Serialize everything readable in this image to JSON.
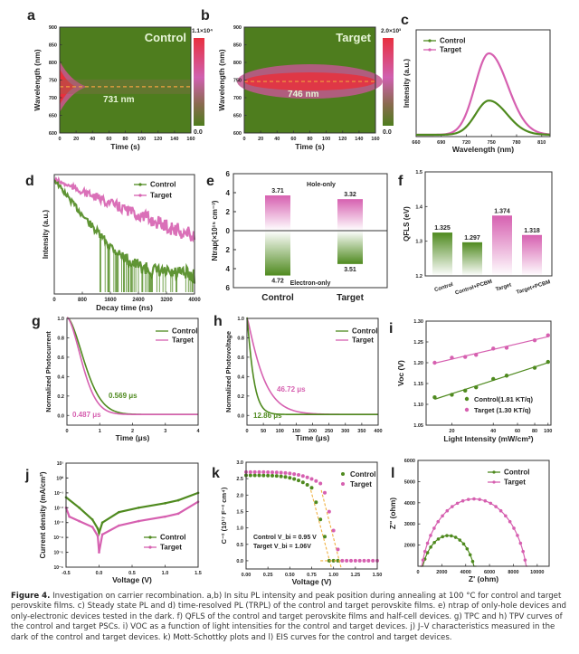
{
  "colors": {
    "control": "#4f8a1f",
    "target": "#d660b0",
    "heat_bg": "#4e7d1e",
    "heat_hot": "#e8303c",
    "heat_mid": "#d66ab0",
    "dash": "#f0a040",
    "axis": "#333333"
  },
  "caption": {
    "label": "Figure 4.",
    "text": "Investigation on carrier recombination. a,b) In situ PL intensity and peak position during annealing at 100 °C for control and target perovskite films. c) Steady state PL and d) time-resolved PL (TRPL) of the control and target perovskite films. e) ntrap of only-hole devices and only-electronic devices tested in the dark. f) QFLS of the control and target perovskite films and half-cell devices. g) TPC and h) TPV curves of the control and target PSCs. i) VOC as a function of light intensities for the control and target devices. j) J–V characteristics measured in the dark of the control and target devices. k) Mott-Schottky plots and l) EIS curves for the control and target devices."
  },
  "chart_data": [
    {
      "panel": "a",
      "type": "heatmap",
      "title": "Control",
      "xlabel": "Time (s)",
      "ylabel": "Wavelength (nm)",
      "xlim": [
        0,
        160
      ],
      "ylim": [
        600,
        900
      ],
      "xticks": [
        0,
        20,
        40,
        60,
        80,
        100,
        120,
        140,
        160
      ],
      "yticks": [
        600,
        650,
        700,
        750,
        800,
        850,
        900
      ],
      "annotation": "731 nm",
      "peak_nm": 731,
      "colorbar": {
        "max_label": "1.1×10⁴",
        "min_label": "0.0",
        "max": 11000,
        "min": 0
      }
    },
    {
      "panel": "b",
      "type": "heatmap",
      "title": "Target",
      "xlabel": "Time (s)",
      "ylabel": "Wavelength (nm)",
      "xlim": [
        0,
        160
      ],
      "ylim": [
        600,
        900
      ],
      "xticks": [
        0,
        20,
        40,
        60,
        80,
        100,
        120,
        140,
        160
      ],
      "yticks": [
        600,
        650,
        700,
        750,
        800,
        850,
        900
      ],
      "annotation": "746 nm",
      "peak_nm": 746,
      "colorbar": {
        "max_label": "2.0×10³",
        "min_label": "0.0",
        "max": 2000,
        "min": 0
      }
    },
    {
      "panel": "c",
      "type": "line",
      "xlabel": "Wavelength (nm)",
      "ylabel": "Intensity (a.u.)",
      "xlim": [
        660,
        820
      ],
      "xticks": [
        660,
        690,
        720,
        750,
        780,
        810
      ],
      "legend": "top-left",
      "series": [
        {
          "name": "Control",
          "peak_x": 747,
          "peak_rel": 0.42,
          "fwhm_nm": 44
        },
        {
          "name": "Target",
          "peak_x": 747,
          "peak_rel": 1.0,
          "fwhm_nm": 46
        }
      ]
    },
    {
      "panel": "d",
      "type": "scatter",
      "xlabel": "Decay time (ns)",
      "ylabel": "Intensity (a.u.)",
      "xlim": [
        0,
        4000
      ],
      "xticks": [
        0,
        800,
        1600,
        2400,
        3200,
        4000
      ],
      "yscale": "log",
      "legend": "top-right",
      "series": [
        {
          "name": "Control",
          "tau_ns": 500
        },
        {
          "name": "Target",
          "tau_ns": 1500
        }
      ]
    },
    {
      "panel": "e",
      "type": "bar",
      "ylabel": "Ntrap(×10¹⁵ cm⁻³)",
      "categories": [
        "Control",
        "Target"
      ],
      "ylim": [
        -6,
        6
      ],
      "yticks": [
        6,
        4,
        2,
        0,
        2,
        4,
        6
      ],
      "labels": {
        "top": "Hole-only",
        "bottom": "Electron-only"
      },
      "series": [
        {
          "name": "Hole-only",
          "values": [
            3.71,
            3.32
          ]
        },
        {
          "name": "Electron-only",
          "values": [
            4.72,
            3.51
          ]
        }
      ]
    },
    {
      "panel": "f",
      "type": "bar",
      "ylabel": "QFLS (eV)",
      "categories": [
        "Control",
        "Control+PCBM",
        "Target",
        "Target+PCBM"
      ],
      "values": [
        1.325,
        1.297,
        1.374,
        1.318
      ],
      "ylim": [
        1.2,
        1.5
      ],
      "yticks": [
        1.2,
        1.3,
        1.4,
        1.5
      ]
    },
    {
      "panel": "g",
      "type": "line",
      "xlabel": "Time (μs)",
      "ylabel": "Normalized Photocurrent",
      "xlim": [
        0,
        4
      ],
      "ylim": [
        -0.1,
        1.0
      ],
      "xticks": [
        0,
        1,
        2,
        3,
        4
      ],
      "yticks": [
        0.0,
        0.2,
        0.4,
        0.6,
        0.8,
        1.0
      ],
      "legend": "top-right",
      "series": [
        {
          "name": "Control",
          "tau": 0.569,
          "label": "0.569 μs"
        },
        {
          "name": "Target",
          "tau": 0.487,
          "label": "0.487 μs"
        }
      ]
    },
    {
      "panel": "h",
      "type": "line",
      "xlabel": "Time (μs)",
      "ylabel": "Normalized Photovoltage",
      "xlim": [
        0,
        400
      ],
      "ylim": [
        -0.1,
        1.0
      ],
      "xticks": [
        0,
        50,
        100,
        150,
        200,
        250,
        300,
        350,
        400
      ],
      "yticks": [
        0.0,
        0.2,
        0.4,
        0.6,
        0.8,
        1.0
      ],
      "legend": "top-right",
      "series": [
        {
          "name": "Control",
          "tau": 12.86,
          "label": "12.86 μs"
        },
        {
          "name": "Target",
          "tau": 46.72,
          "label": "46.72 μs"
        }
      ]
    },
    {
      "panel": "i",
      "type": "scatter",
      "xlabel": "Light Intensity (mW/cm²)",
      "ylabel": "Voc (V)",
      "xscale": "log",
      "xlim": [
        13,
        105
      ],
      "ylim": [
        1.05,
        1.3
      ],
      "xticks": [
        20,
        40,
        60,
        80,
        100
      ],
      "yticks": [
        1.05,
        1.1,
        1.15,
        1.2,
        1.25,
        1.3
      ],
      "legend": "bottom-right",
      "x": [
        15,
        20,
        25,
        30,
        40,
        50,
        80,
        100
      ],
      "series": [
        {
          "name": "Control(1.81 KT/q)",
          "values": [
            1.117,
            1.123,
            1.133,
            1.141,
            1.161,
            1.169,
            1.188,
            1.202
          ]
        },
        {
          "name": "Target  (1.30 KT/q)",
          "values": [
            1.2,
            1.212,
            1.214,
            1.219,
            1.234,
            1.236,
            1.254,
            1.266
          ]
        }
      ]
    },
    {
      "panel": "j",
      "type": "line",
      "xlabel": "Voltage (V)",
      "ylabel": "Current density (mA/cm²)",
      "yscale": "log",
      "xlim": [
        -0.5,
        1.5
      ],
      "ylim_exp": [
        -6,
        1
      ],
      "xticks": [
        -0.5,
        0.0,
        0.5,
        1.0,
        1.5
      ],
      "yticks": [
        "10⁻⁶",
        "10⁻⁵",
        "10⁻⁴",
        "10⁻³",
        "10⁻²",
        "10⁻¹",
        "10⁰",
        "10¹"
      ],
      "legend": "bottom-right",
      "series": [
        {
          "name": "Control",
          "x": [
            -0.5,
            -0.3,
            -0.1,
            -0.02,
            0.0,
            0.05,
            0.3,
            0.6,
            1.0,
            1.2,
            1.5
          ],
          "log10y": [
            -1.3,
            -2.0,
            -2.8,
            -3.4,
            -3.7,
            -3.0,
            -2.3,
            -2.0,
            -1.7,
            -1.5,
            -1.0
          ]
        },
        {
          "name": "Target",
          "x": [
            -0.5,
            -0.45,
            -0.3,
            -0.1,
            -0.02,
            0.0,
            0.05,
            0.3,
            0.6,
            1.0,
            1.2,
            1.5
          ],
          "log10y": [
            -2.0,
            -2.6,
            -2.9,
            -3.3,
            -3.9,
            -5.0,
            -3.8,
            -3.2,
            -2.9,
            -2.6,
            -2.4,
            -1.6
          ]
        }
      ]
    },
    {
      "panel": "k",
      "type": "scatter",
      "xlabel": "Voltage (V)",
      "ylabel": "C⁻² (10¹⁷ F⁻² cm⁴)",
      "xlim": [
        0,
        1.5
      ],
      "ylim": [
        -0.25,
        3.0
      ],
      "xticks": [
        0.0,
        0.25,
        0.5,
        0.75,
        1.0,
        1.25,
        1.5
      ],
      "yticks": [
        0.0,
        0.5,
        1.0,
        1.5,
        2.0,
        2.5,
        3.0
      ],
      "legend": "top-right",
      "annotation": [
        "Control V_bi = 0.95 V",
        "Target   V_bi = 1.06V"
      ],
      "series": [
        {
          "name": "Control",
          "vbi": 0.95,
          "plateau": 2.6,
          "knee": 0.76
        },
        {
          "name": "Target",
          "vbi": 1.06,
          "plateau": 2.7,
          "knee": 0.88
        }
      ]
    },
    {
      "panel": "l",
      "type": "scatter",
      "xlabel": "Z' (ohm)",
      "ylabel": "Z'' (ohm)",
      "xlim": [
        0,
        11000
      ],
      "ylim": [
        0,
        6000
      ],
      "xticks": [
        0,
        2000,
        4000,
        6000,
        8000,
        10000
      ],
      "yticks": [
        2000,
        3000,
        4000,
        5000,
        6000
      ],
      "legend": "top-right",
      "series": [
        {
          "name": "Control",
          "r_start": 200,
          "r_end": 4900,
          "peak": 2450
        },
        {
          "name": "Target",
          "r_start": 200,
          "r_end": 9200,
          "peak": 4180
        }
      ]
    }
  ]
}
